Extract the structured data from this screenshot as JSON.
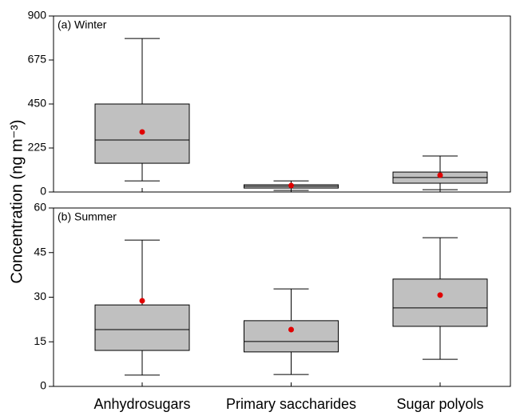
{
  "chart_data": [
    {
      "type": "box",
      "title": "(a) Winter",
      "ylabel": "Concentration (ng m⁻³)",
      "ylim": [
        0,
        900
      ],
      "yticks": [
        0,
        225,
        450,
        675,
        900
      ],
      "box_color": "#c0c0c0",
      "mean_color": "#e00000",
      "boxes": [
        {
          "whislo": 57,
          "q1": 147,
          "med": 266,
          "q3": 450,
          "whishi": 785,
          "mean": 307
        },
        {
          "whislo": 8,
          "q1": 20,
          "med": 29,
          "q3": 37,
          "whishi": 57,
          "mean": 33
        },
        {
          "whislo": 12,
          "q1": 45,
          "med": 74,
          "q3": 102,
          "whishi": 184,
          "mean": 86
        }
      ]
    },
    {
      "type": "box",
      "title": "(b) Summer",
      "categories": [
        "Anhydrosugars",
        "Primary saccharides",
        "Sugar polyols"
      ],
      "ylim": [
        0,
        60
      ],
      "yticks": [
        0,
        15,
        30,
        45,
        60
      ],
      "box_color": "#c0c0c0",
      "mean_color": "#e00000",
      "boxes": [
        {
          "whislo": 3.8,
          "q1": 12.1,
          "med": 19.1,
          "q3": 27.4,
          "whishi": 49.2,
          "mean": 28.8
        },
        {
          "whislo": 4.0,
          "q1": 11.6,
          "med": 15.1,
          "q3": 22.1,
          "whishi": 32.8,
          "mean": 19.1
        },
        {
          "whislo": 9.1,
          "q1": 20.2,
          "med": 26.4,
          "q3": 36.1,
          "whishi": 50.0,
          "mean": 30.7
        }
      ]
    }
  ]
}
